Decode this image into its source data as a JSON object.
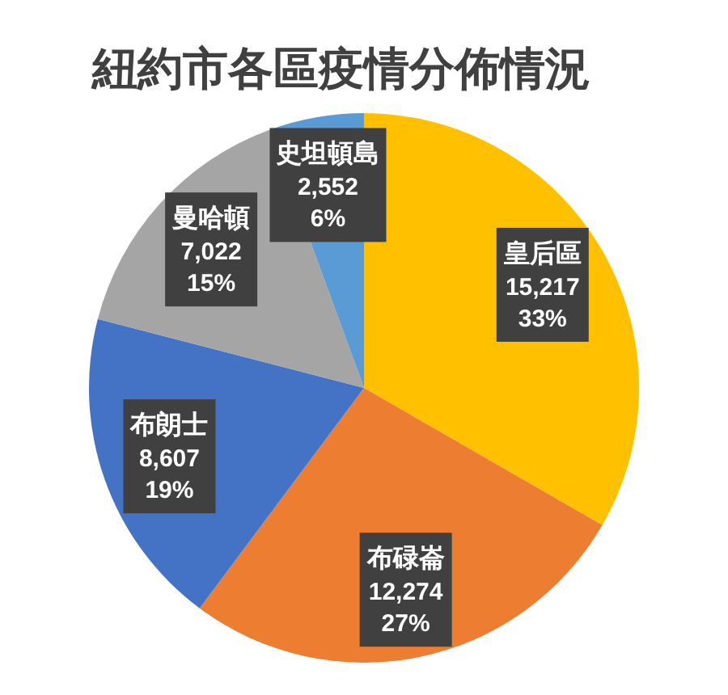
{
  "chart_data": {
    "type": "pie",
    "title": "紐約市各區疫情分佈情況",
    "categories": [
      "皇后區",
      "布碌崙",
      "布朗士",
      "曼哈頓",
      "史坦頓島"
    ],
    "values": [
      15217,
      12274,
      8607,
      7022,
      2552
    ],
    "colors": [
      "#ffc000",
      "#ed7d31",
      "#4472c4",
      "#a5a5a5",
      "#5b9bd5"
    ],
    "value_labels": [
      "15,217\n33%",
      "12,274\n27%",
      "8,607\n19%",
      "7,022\n15%",
      "2,552\n6%"
    ]
  }
}
